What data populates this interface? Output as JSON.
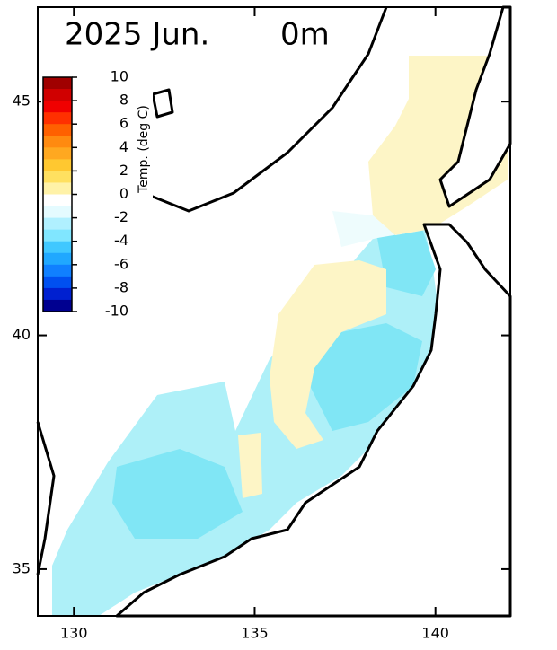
{
  "title": "2025 Jun.",
  "depth": "0m",
  "axes": {
    "xlim": [
      129,
      142.07
    ],
    "ylim": [
      34,
      47.02
    ],
    "xticks": [
      130,
      135,
      140
    ],
    "yticks": [
      35,
      40,
      45
    ]
  },
  "colorbar": {
    "label": "Temp. (deg C)",
    "lim": [
      -10,
      10
    ],
    "ticks": [
      10,
      8,
      6,
      4,
      2,
      0,
      -2,
      -4,
      -6,
      -8,
      -10
    ],
    "colors": [
      "#a00000",
      "#d00000",
      "#f00000",
      "#ff3000",
      "#ff6000",
      "#ff8a10",
      "#ffa820",
      "#ffc830",
      "#ffe060",
      "#fff2a8",
      "#ffffff",
      "#e4fbff",
      "#b0f0ff",
      "#80e6ff",
      "#40c8ff",
      "#20a8ff",
      "#1080ff",
      "#0050f0",
      "#0020d0",
      "#000090"
    ]
  }
}
